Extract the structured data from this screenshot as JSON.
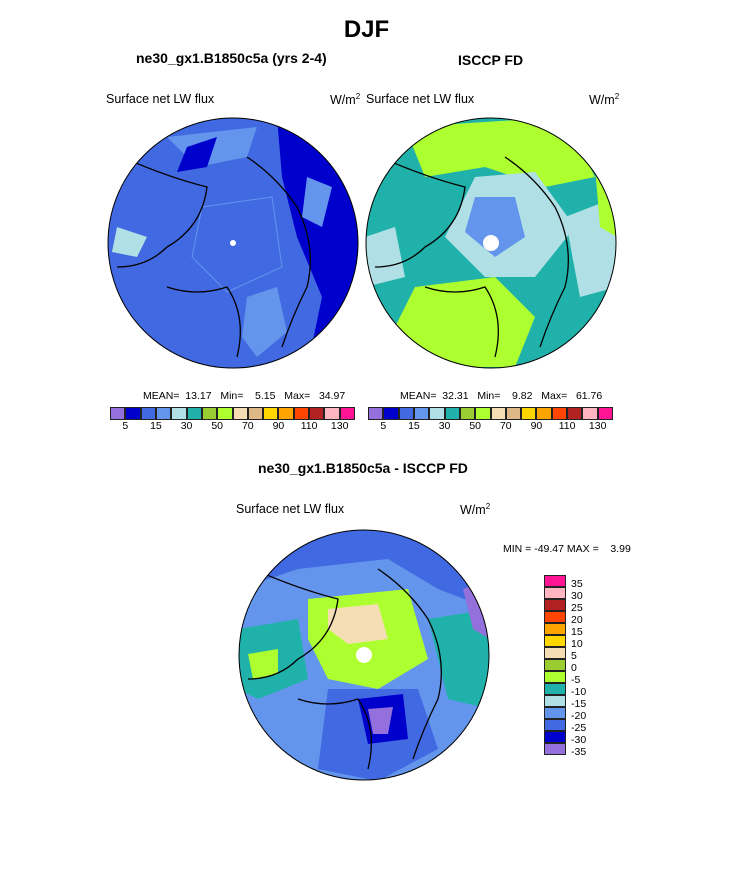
{
  "figure": {
    "season_title": "DJF",
    "left_panel": {
      "case_title": "ne30_gx1.B1850c5a (yrs 2-4)",
      "variable": "Surface net LW flux",
      "units": "W/m",
      "units_sup": "2",
      "stats": "MEAN=  13.17   Min=    5.15   Max=   34.97"
    },
    "right_panel": {
      "case_title": "ISCCP FD",
      "variable": "Surface net LW flux",
      "units": "W/m",
      "units_sup": "2",
      "stats": "MEAN=  32.31   Min=    9.82   Max=   61.76"
    },
    "diff_panel": {
      "case_title": "ne30_gx1.B1850c5a - ISCCP FD",
      "variable": "Surface net LW flux",
      "units": "W/m",
      "units_sup": "2",
      "stats": "MIN = -49.47 MAX =    3.99"
    }
  },
  "colorbar_abs": {
    "colors": [
      "#9370DB",
      "#0000CD",
      "#4169E1",
      "#6495ED",
      "#B0E0E6",
      "#20B2AA",
      "#9ACD32",
      "#ADFF2F",
      "#F5DEB3",
      "#DEB887",
      "#FFD700",
      "#FFA500",
      "#FF4500",
      "#B22222",
      "#FFB6C1",
      "#FF1493"
    ],
    "tick_labels": [
      "5",
      "15",
      "30",
      "50",
      "70",
      "90",
      "110",
      "130"
    ]
  },
  "colorbar_diff": {
    "colors": [
      "#FF1493",
      "#FFB6C1",
      "#B22222",
      "#FF4500",
      "#FFA500",
      "#FFD700",
      "#F5DEB3",
      "#9ACD32",
      "#ADFF2F",
      "#20B2AA",
      "#B0E0E6",
      "#6495ED",
      "#4169E1",
      "#0000CD",
      "#9370DB"
    ],
    "labels": [
      "35",
      "30",
      "25",
      "20",
      "15",
      "10",
      "5",
      "0",
      "-5",
      "-10",
      "-15",
      "-20",
      "-25",
      "-30",
      "-35"
    ]
  }
}
